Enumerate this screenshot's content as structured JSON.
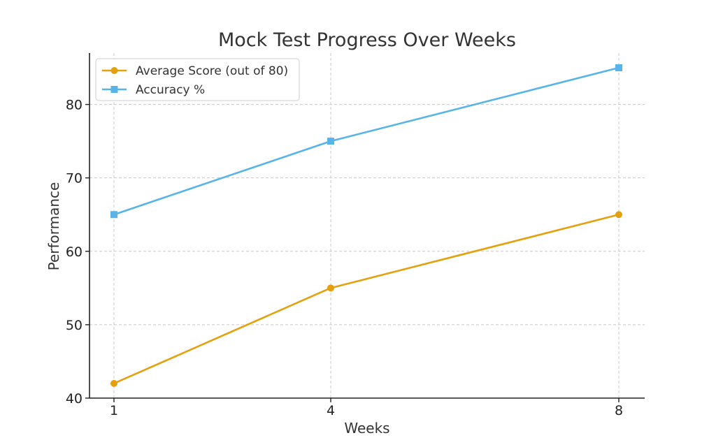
{
  "chart_data": {
    "type": "line",
    "title": "Mock Test Progress Over Weeks",
    "xlabel": "Weeks",
    "ylabel": "Performance",
    "x": [
      1,
      4,
      8
    ],
    "x_tick_labels": [
      "1",
      "4",
      "8"
    ],
    "y_ticks": [
      40,
      50,
      60,
      70,
      80
    ],
    "ylim": [
      40,
      87
    ],
    "grid": true,
    "legend_position": "top-left",
    "series": [
      {
        "name": "Average Score (out of 80)",
        "values": [
          42,
          55,
          65
        ],
        "color": "#E5A00D",
        "marker": "circle"
      },
      {
        "name": "Accuracy %",
        "values": [
          65,
          75,
          85
        ],
        "color": "#56B4E9",
        "marker": "square"
      }
    ]
  }
}
